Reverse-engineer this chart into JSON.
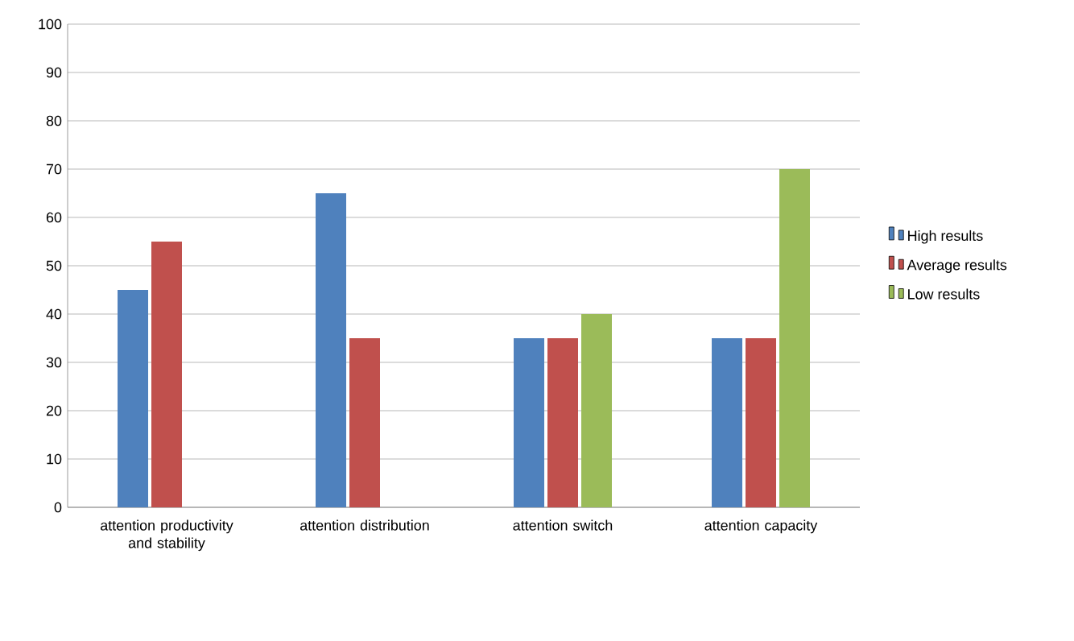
{
  "chart_data": {
    "type": "bar",
    "categories": [
      "attention productivity and stability",
      "attention distribution",
      "attention switch",
      "attention capacity"
    ],
    "series": [
      {
        "name": "High results",
        "color": "#4f81bd",
        "values": [
          45,
          65,
          35,
          35
        ]
      },
      {
        "name": "Average results",
        "color": "#c0504d",
        "values": [
          55,
          35,
          35,
          35
        ]
      },
      {
        "name": "Low results",
        "color": "#9bbb59",
        "values": [
          null,
          null,
          40,
          70
        ]
      }
    ],
    "ylim": [
      0,
      100
    ],
    "yticks": [
      0,
      10,
      20,
      30,
      40,
      50,
      60,
      70,
      80,
      90,
      100
    ],
    "grid": "y",
    "legend": "right"
  }
}
